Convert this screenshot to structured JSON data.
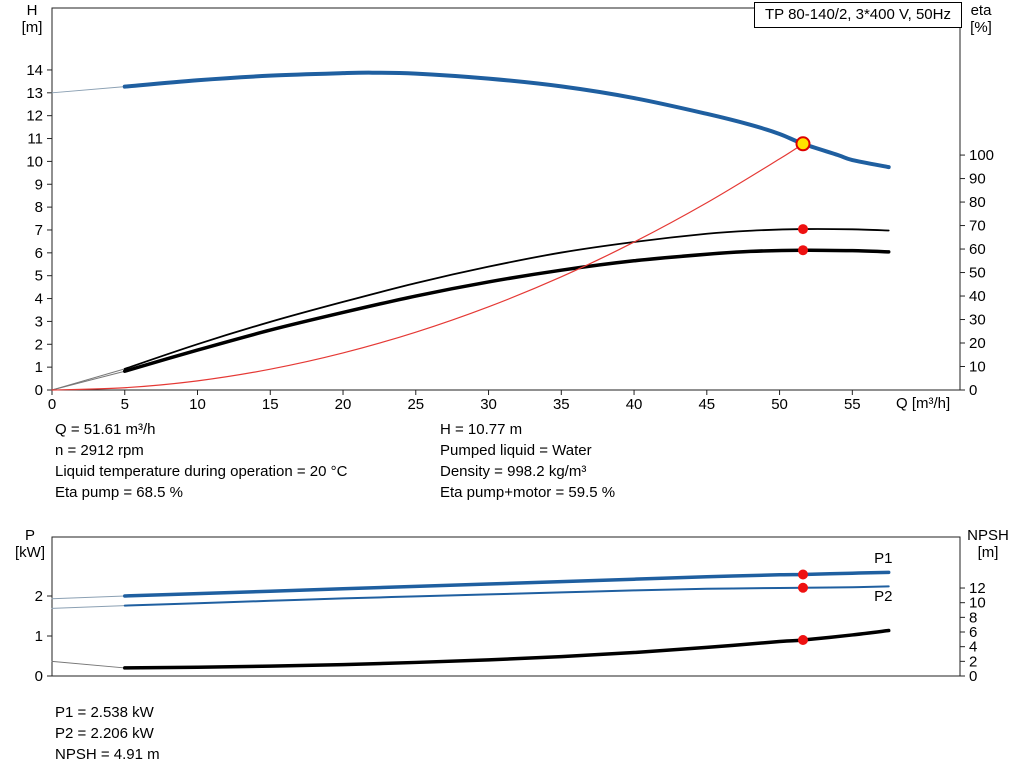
{
  "chart_data": [
    {
      "type": "line",
      "title": "TP 80-140/2, 3*400 V, 50Hz",
      "x": {
        "label": "Q [m³/h]",
        "min": 0,
        "max": 62.4,
        "ticks": [
          0,
          5,
          10,
          15,
          20,
          25,
          30,
          35,
          40,
          45,
          50,
          55
        ]
      },
      "y_left": {
        "label": "H\n[m]",
        "min": 0,
        "max": 16.71,
        "ticks": [
          0,
          1,
          2,
          3,
          4,
          5,
          6,
          7,
          8,
          9,
          10,
          11,
          12,
          13,
          14
        ]
      },
      "y_right": {
        "label": "eta\n[%]",
        "min": 0,
        "max": 162.6,
        "ticks": [
          0,
          10,
          20,
          30,
          40,
          50,
          60,
          70,
          80,
          90,
          100
        ]
      },
      "grid": false,
      "series": [
        {
          "name": "qh-leadin",
          "axis": "left",
          "color": "#8ba0b3",
          "width": 1,
          "points": [
            [
              0,
              13.0
            ],
            [
              5,
              13.27
            ]
          ]
        },
        {
          "name": "qh-curve",
          "axis": "left",
          "color": "#1f5fa0",
          "width": 4,
          "points": [
            [
              5,
              13.27
            ],
            [
              10,
              13.55
            ],
            [
              15,
              13.75
            ],
            [
              20,
              13.86
            ],
            [
              22,
              13.88
            ],
            [
              25,
              13.84
            ],
            [
              30,
              13.62
            ],
            [
              35,
              13.28
            ],
            [
              40,
              12.77
            ],
            [
              45,
              12.08
            ],
            [
              48,
              11.6
            ],
            [
              50,
              11.2
            ],
            [
              51.61,
              10.77
            ],
            [
              54,
              10.28
            ],
            [
              55,
              10.06
            ],
            [
              57.5,
              9.75
            ]
          ]
        },
        {
          "name": "eta-pump-leadin",
          "axis": "right",
          "color": "#777777",
          "width": 1,
          "points": [
            [
              0,
              0
            ],
            [
              5,
              9
            ]
          ]
        },
        {
          "name": "eta-pump-motor-leadin",
          "axis": "right",
          "color": "#777777",
          "width": 1,
          "points": [
            [
              0,
              0
            ],
            [
              5,
              8
            ]
          ]
        },
        {
          "name": "eta-pump-curve",
          "axis": "right",
          "color": "#000000",
          "width": 1.8,
          "points": [
            [
              5,
              9
            ],
            [
              10,
              19.5
            ],
            [
              15,
              29
            ],
            [
              20,
              37.5
            ],
            [
              25,
              45.5
            ],
            [
              30,
              52.5
            ],
            [
              35,
              58.5
            ],
            [
              40,
              63
            ],
            [
              45,
              66.5
            ],
            [
              48,
              67.8
            ],
            [
              51.61,
              68.5
            ],
            [
              55,
              68.4
            ],
            [
              57.5,
              67.9
            ]
          ]
        },
        {
          "name": "eta-pump-motor-curve",
          "axis": "right",
          "color": "#000000",
          "width": 3.5,
          "points": [
            [
              5,
              8
            ],
            [
              10,
              17
            ],
            [
              15,
              25.5
            ],
            [
              20,
              33
            ],
            [
              25,
              40
            ],
            [
              30,
              46
            ],
            [
              35,
              51
            ],
            [
              40,
              55
            ],
            [
              45,
              57.8
            ],
            [
              48,
              59
            ],
            [
              51.61,
              59.5
            ],
            [
              55,
              59.3
            ],
            [
              57.5,
              58.8
            ]
          ]
        },
        {
          "name": "system-curve",
          "axis": "left",
          "color": "#e53935",
          "width": 1.2,
          "points": [
            [
              0,
              0
            ],
            [
              5,
              0.1
            ],
            [
              10,
              0.4
            ],
            [
              15,
              0.91
            ],
            [
              20,
              1.62
            ],
            [
              25,
              2.53
            ],
            [
              30,
              3.64
            ],
            [
              35,
              4.95
            ],
            [
              40,
              6.47
            ],
            [
              45,
              8.19
            ],
            [
              50,
              10.11
            ],
            [
              51.61,
              10.77
            ]
          ]
        }
      ],
      "markers": [
        {
          "name": "duty-point-qh",
          "axis": "left",
          "x": 51.61,
          "y": 10.77,
          "r": 6.5,
          "fill": "#ffe400",
          "stroke": "#dd0000"
        },
        {
          "name": "duty-point-eta-pump",
          "axis": "right",
          "x": 51.61,
          "y": 68.5,
          "r": 5,
          "fill": "#ee1111"
        },
        {
          "name": "duty-point-eta-pump-motor",
          "axis": "right",
          "x": 51.61,
          "y": 59.5,
          "r": 5,
          "fill": "#ee1111"
        }
      ]
    },
    {
      "type": "line",
      "title": "",
      "x": {
        "label": "",
        "min": 0,
        "max": 62.4,
        "ticks": []
      },
      "y_left": {
        "label": "P\n[kW]",
        "min": 0,
        "max": 3.475,
        "ticks": [
          0,
          1,
          2
        ]
      },
      "y_right": {
        "label": "NPSH\n[m]",
        "min": 0,
        "max": 18.96,
        "ticks": [
          0,
          2,
          4,
          6,
          8,
          10,
          12
        ]
      },
      "grid": false,
      "series": [
        {
          "name": "p1-leadin",
          "axis": "left",
          "color": "#8ba0b3",
          "width": 1,
          "points": [
            [
              0,
              1.93
            ],
            [
              5,
              2.0
            ]
          ]
        },
        {
          "name": "p1-curve",
          "axis": "left",
          "color": "#1f5fa0",
          "width": 3.5,
          "points": [
            [
              5,
              2.0
            ],
            [
              10,
              2.06
            ],
            [
              15,
              2.12
            ],
            [
              20,
              2.18
            ],
            [
              25,
              2.24
            ],
            [
              30,
              2.3
            ],
            [
              35,
              2.36
            ],
            [
              40,
              2.42
            ],
            [
              45,
              2.48
            ],
            [
              50,
              2.53
            ],
            [
              51.61,
              2.538
            ],
            [
              55,
              2.57
            ],
            [
              57.5,
              2.59
            ]
          ]
        },
        {
          "name": "p2-leadin",
          "axis": "left",
          "color": "#8ba0b3",
          "width": 1,
          "points": [
            [
              0,
              1.69
            ],
            [
              5,
              1.76
            ]
          ]
        },
        {
          "name": "p2-curve",
          "axis": "left",
          "color": "#1f5fa0",
          "width": 2,
          "points": [
            [
              5,
              1.76
            ],
            [
              10,
              1.82
            ],
            [
              15,
              1.88
            ],
            [
              20,
              1.94
            ],
            [
              25,
              1.99
            ],
            [
              30,
              2.04
            ],
            [
              35,
              2.09
            ],
            [
              40,
              2.14
            ],
            [
              45,
              2.18
            ],
            [
              50,
              2.2
            ],
            [
              51.61,
              2.206
            ],
            [
              55,
              2.22
            ],
            [
              57.5,
              2.24
            ]
          ]
        },
        {
          "name": "npsh-leadin",
          "axis": "right",
          "color": "#777777",
          "width": 1,
          "points": [
            [
              0,
              2.0
            ],
            [
              5,
              1.1
            ]
          ]
        },
        {
          "name": "npsh-curve",
          "axis": "right",
          "color": "#000000",
          "width": 3.5,
          "points": [
            [
              5,
              1.1
            ],
            [
              10,
              1.2
            ],
            [
              15,
              1.35
            ],
            [
              20,
              1.55
            ],
            [
              25,
              1.85
            ],
            [
              30,
              2.2
            ],
            [
              35,
              2.65
            ],
            [
              40,
              3.2
            ],
            [
              45,
              3.9
            ],
            [
              50,
              4.7
            ],
            [
              51.61,
              4.91
            ],
            [
              55,
              5.6
            ],
            [
              57.5,
              6.2
            ]
          ]
        }
      ],
      "markers": [
        {
          "name": "duty-point-p1",
          "axis": "left",
          "x": 51.61,
          "y": 2.538,
          "r": 5,
          "fill": "#ee1111"
        },
        {
          "name": "duty-point-p2",
          "axis": "left",
          "x": 51.61,
          "y": 2.206,
          "r": 5,
          "fill": "#ee1111"
        },
        {
          "name": "duty-point-npsh",
          "axis": "right",
          "x": 51.61,
          "y": 4.91,
          "r": 5,
          "fill": "#ee1111"
        }
      ],
      "annotations": [
        {
          "text": "P1",
          "axis": "left",
          "x": 56.5,
          "y": 2.82,
          "color": "#1f5fa0"
        },
        {
          "text": "P2",
          "axis": "left",
          "x": 56.5,
          "y": 1.88,
          "color": "#1f5fa0"
        }
      ]
    }
  ],
  "info_top": {
    "left": [
      "Q = 51.61 m³/h",
      "n = 2912 rpm",
      "Liquid temperature during operation = 20 °C",
      "Eta pump = 68.5 %"
    ],
    "right": [
      "H = 10.77 m",
      "Pumped liquid = Water",
      "Density = 998.2 kg/m³",
      "Eta pump+motor = 59.5 %"
    ]
  },
  "info_bottom": [
    "P1 = 2.538 kW",
    "P2 = 2.206 kW",
    "NPSH = 4.91 m"
  ]
}
